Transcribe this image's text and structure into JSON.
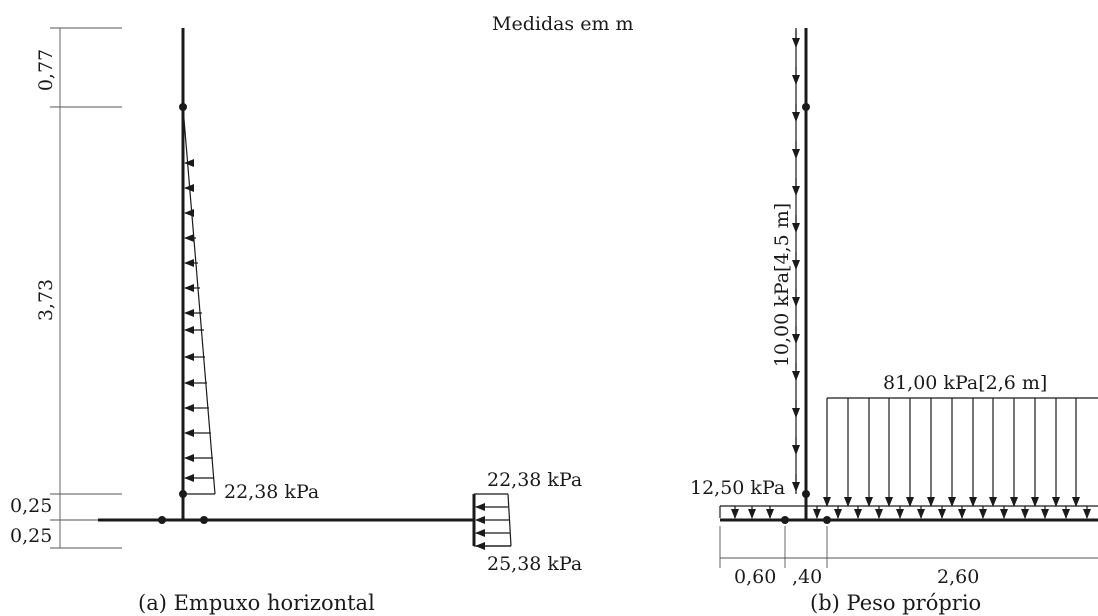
{
  "header": {
    "units_note": "Medidas em m"
  },
  "diagram_a": {
    "caption": "(a) Empuxo horizontal",
    "dims": [
      "0,77",
      "3,73",
      "0,25",
      "0,25"
    ],
    "loads": {
      "wall_base": "22,38 kPa",
      "heel_top": "22,38 kPa",
      "heel_bottom": "25,38 kPa"
    }
  },
  "diagram_b": {
    "caption": "(b) Peso próprio",
    "loads": {
      "wall": "10,00 kPa[4,5 m]",
      "heel": "81,00 kPa[2,6 m]",
      "base": "12,50 kPa"
    },
    "dims": [
      "0,60",
      ",40",
      "2,60"
    ]
  }
}
